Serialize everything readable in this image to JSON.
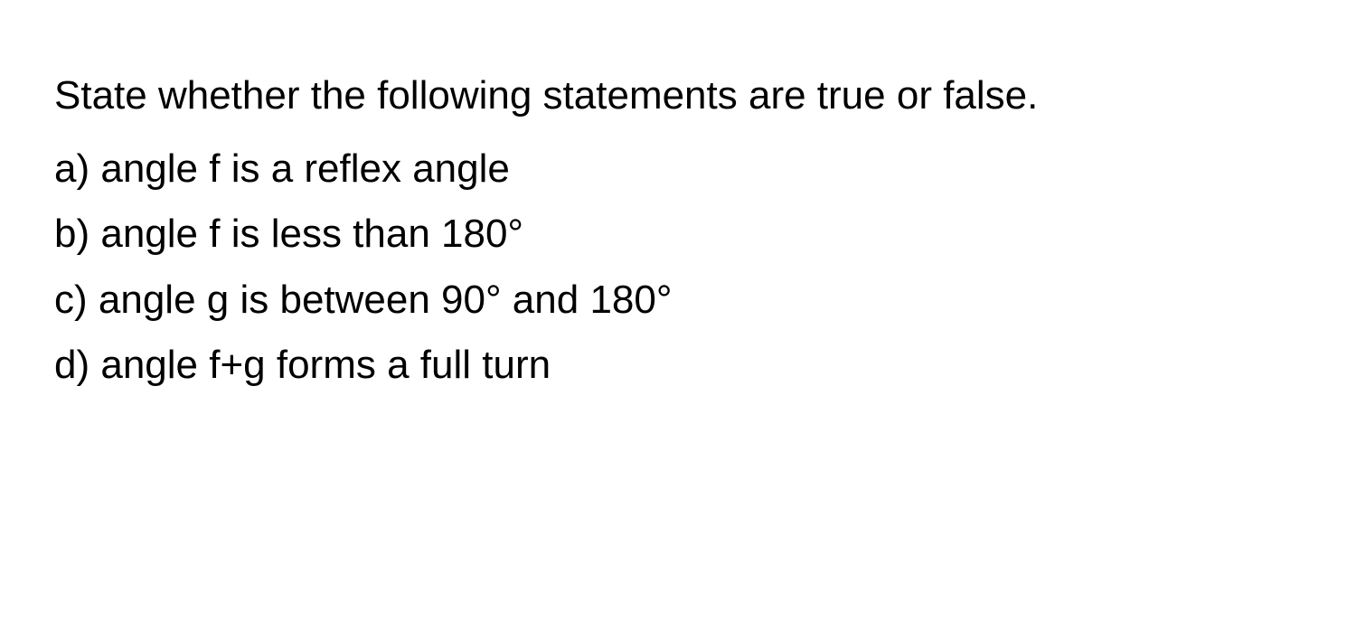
{
  "question": {
    "intro": "State whether the following statements are true or false.",
    "items": [
      {
        "label": "a)",
        "text": "angle f is a reflex angle"
      },
      {
        "label": "b)",
        "text": "angle f is less than 180°"
      },
      {
        "label": "c)",
        "text": "angle g is between 90° and 180°"
      },
      {
        "label": "d)",
        "text": "angle f+g forms a full turn"
      }
    ]
  },
  "style": {
    "background_color": "#ffffff",
    "text_color": "#000000",
    "font_size": 44,
    "line_height": 1.65
  }
}
